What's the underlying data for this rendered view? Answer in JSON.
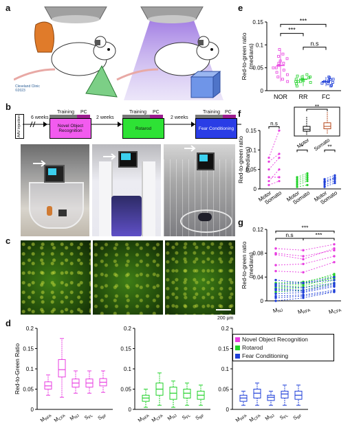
{
  "panels": {
    "a": "a",
    "b": "b",
    "c": "c",
    "d": "d",
    "e": "e",
    "f": "f",
    "g": "g"
  },
  "logo": {
    "org": "Cleveland Clinic",
    "year": "©2023"
  },
  "timeline": {
    "aav": "AAV injection",
    "gap1": "6 weeks",
    "gap2": "2 weeks",
    "gap3": "2 weeks",
    "training": "Training",
    "pc": "PC",
    "task1": "Novel Object Recognition",
    "task2": "Rotarod",
    "task3": "Fear Conditioning"
  },
  "scalebar": "200 μm",
  "colors": {
    "nor": "#e83ee0",
    "rr": "#22d22a",
    "fc": "#1f3fd8",
    "pc": "#9c1c8f"
  },
  "legend": {
    "items": [
      "Novel Object Recognition",
      "Rotarod",
      "Fear Conditioning"
    ]
  },
  "chart_data": [
    {
      "id": "e",
      "type": "scatter",
      "ylabel": "Red-to-green ratio (medians)",
      "categories": [
        "NOR",
        "RR",
        "FC"
      ],
      "ylim": [
        0,
        0.15
      ],
      "yticks": [
        "0",
        "0.05",
        "0.1",
        "0.15"
      ],
      "significance": [
        {
          "between": [
            "NOR",
            "FC"
          ],
          "label": "***"
        },
        {
          "between": [
            "NOR",
            "RR"
          ],
          "label": "***"
        },
        {
          "between": [
            "RR",
            "FC"
          ],
          "label": "n.s"
        }
      ],
      "series": [
        {
          "category": "NOR",
          "values": [
            0.03,
            0.05,
            0.07,
            0.06,
            0.08,
            0.04,
            0.02,
            0.09,
            0.055,
            0.065,
            0.035,
            0.045,
            0.075,
            0.025,
            0.06,
            0.05
          ]
        },
        {
          "category": "RR",
          "values": [
            0.02,
            0.03,
            0.025,
            0.015,
            0.035,
            0.02,
            0.03,
            0.01,
            0.025,
            0.02,
            0.028,
            0.018,
            0.032,
            0.022
          ]
        },
        {
          "category": "FC",
          "values": [
            0.02,
            0.015,
            0.025,
            0.03,
            0.01,
            0.02,
            0.018,
            0.028,
            0.022,
            0.012,
            0.024,
            0.016
          ]
        }
      ]
    },
    {
      "id": "f",
      "type": "scatter",
      "ylabel": "Red-to-green ratio (medians)",
      "categories": [
        "Motor",
        "Somato",
        "Motor",
        "Somato",
        "Motor",
        "Somato"
      ],
      "ylim": [
        0,
        0.15
      ],
      "yticks": [
        "0",
        "0.05",
        "0.1",
        "0.15"
      ],
      "significance": [
        {
          "between": [
            "NOR Motor",
            "NOR Somato"
          ],
          "label": "n.s"
        },
        {
          "between": [
            "RR Motor",
            "RR Somato"
          ],
          "label": "*"
        },
        {
          "between": [
            "FC Motor",
            "FC Somato"
          ],
          "label": "**"
        }
      ],
      "pairs": [
        {
          "group": "NOR",
          "motor": [
            0.08,
            0.07,
            0.05,
            0.02,
            0.01,
            0.03
          ],
          "somato": [
            0.15,
            0.09,
            0.08,
            0.05,
            0.02,
            0.03
          ]
        },
        {
          "group": "RR",
          "motor": [
            0.03,
            0.02,
            0.01,
            0.025,
            0.015,
            0.005
          ],
          "somato": [
            0.04,
            0.03,
            0.02,
            0.035,
            0.025,
            0.01
          ]
        },
        {
          "group": "FC",
          "motor": [
            0.02,
            0.015,
            0.01,
            0.005,
            0.025,
            0.018
          ],
          "somato": [
            0.03,
            0.025,
            0.02,
            0.015,
            0.035,
            0.028
          ]
        }
      ],
      "inset": {
        "categories": [
          "Motor",
          "Somato"
        ],
        "significance": "**",
        "boxes": [
          {
            "q1": 0.02,
            "median": 0.028,
            "q3": 0.04,
            "min": 0.005,
            "max": 0.08
          },
          {
            "q1": 0.03,
            "median": 0.04,
            "q3": 0.055,
            "min": 0.01,
            "max": 0.1
          }
        ]
      }
    },
    {
      "id": "g",
      "type": "line",
      "ylabel": "Red-to-green ratio (medians)",
      "xlabels": [
        "M_NJ",
        "M_RFA",
        "M_CFA"
      ],
      "ylim": [
        0,
        0.12
      ],
      "yticks": [
        "0",
        "0.04",
        "0.08",
        "0.12"
      ],
      "significance": [
        {
          "between": [
            "M_NJ",
            "M_CFA"
          ],
          "label": "***"
        },
        {
          "between": [
            "M_NJ",
            "M_RFA"
          ],
          "label": "n.s"
        },
        {
          "between": [
            "M_RFA",
            "M_CFA"
          ],
          "label": "***"
        }
      ],
      "series": [
        {
          "group": "NOR",
          "lines": [
            [
              0.088,
              0.085,
              0.095
            ],
            [
              0.08,
              0.075,
              0.085
            ],
            [
              0.06,
              0.062,
              0.075
            ],
            [
              0.05,
              0.048,
              0.065
            ],
            [
              0.078,
              0.07,
              0.088
            ]
          ]
        },
        {
          "group": "RR",
          "lines": [
            [
              0.03,
              0.032,
              0.042
            ],
            [
              0.025,
              0.028,
              0.038
            ],
            [
              0.02,
              0.022,
              0.035
            ],
            [
              0.015,
              0.018,
              0.03
            ],
            [
              0.028,
              0.03,
              0.045
            ],
            [
              0.022,
              0.025,
              0.04
            ]
          ]
        },
        {
          "group": "FC",
          "lines": [
            [
              0.035,
              0.03,
              0.04
            ],
            [
              0.02,
              0.018,
              0.028
            ],
            [
              0.012,
              0.014,
              0.024
            ],
            [
              0.008,
              0.01,
              0.018
            ],
            [
              0.0,
              0.005,
              0.015
            ],
            [
              0.028,
              0.03,
              0.035
            ],
            [
              0.018,
              0.016,
              0.026
            ],
            [
              0.005,
              0.008,
              0.016
            ],
            [
              0.025,
              0.022,
              0.03
            ]
          ]
        }
      ]
    },
    {
      "id": "d",
      "type": "box",
      "ylabel": "Red-to-Green Ratio",
      "ylim": [
        0,
        0.2
      ],
      "yticks": [
        "0",
        "0.05",
        "0.1",
        "0.15",
        "0.2"
      ],
      "subplots": [
        {
          "group": "NOR",
          "categories": [
            "M_RFA",
            "M_CFA",
            "M_NJ",
            "S_FL",
            "S_BF"
          ],
          "boxes": [
            {
              "min": 0.035,
              "q1": 0.05,
              "median": 0.058,
              "q3": 0.068,
              "max": 0.085
            },
            {
              "min": 0.03,
              "q1": 0.08,
              "median": 0.098,
              "q3": 0.123,
              "max": 0.175
            },
            {
              "min": 0.04,
              "q1": 0.055,
              "median": 0.065,
              "q3": 0.075,
              "max": 0.095
            },
            {
              "min": 0.04,
              "q1": 0.055,
              "median": 0.065,
              "q3": 0.075,
              "max": 0.095
            },
            {
              "min": 0.042,
              "q1": 0.058,
              "median": 0.067,
              "q3": 0.076,
              "max": 0.095
            }
          ]
        },
        {
          "group": "RR",
          "categories": [
            "M_RFA",
            "M_CFA",
            "M_NJ",
            "S_FL",
            "S_BF"
          ],
          "boxes": [
            {
              "min": 0.005,
              "q1": 0.02,
              "median": 0.028,
              "q3": 0.035,
              "max": 0.05
            },
            {
              "min": 0.01,
              "q1": 0.035,
              "median": 0.05,
              "q3": 0.065,
              "max": 0.09
            },
            {
              "min": 0.005,
              "q1": 0.025,
              "median": 0.04,
              "q3": 0.055,
              "max": 0.07
            },
            {
              "min": 0.01,
              "q1": 0.028,
              "median": 0.04,
              "q3": 0.05,
              "max": 0.065
            },
            {
              "min": 0.01,
              "q1": 0.025,
              "median": 0.035,
              "q3": 0.045,
              "max": 0.06
            }
          ]
        },
        {
          "group": "FC",
          "categories": [
            "M_RFA",
            "M_CFA",
            "M_NJ",
            "S_FL",
            "S_BF"
          ],
          "boxes": [
            {
              "min": 0.01,
              "q1": 0.02,
              "median": 0.028,
              "q3": 0.035,
              "max": 0.045
            },
            {
              "min": 0.01,
              "q1": 0.028,
              "median": 0.04,
              "q3": 0.05,
              "max": 0.065
            },
            {
              "min": 0.01,
              "q1": 0.022,
              "median": 0.03,
              "q3": 0.035,
              "max": 0.045
            },
            {
              "min": 0.01,
              "q1": 0.028,
              "median": 0.038,
              "q3": 0.045,
              "max": 0.06
            },
            {
              "min": 0.01,
              "q1": 0.025,
              "median": 0.035,
              "q3": 0.045,
              "max": 0.06
            }
          ]
        }
      ]
    }
  ]
}
